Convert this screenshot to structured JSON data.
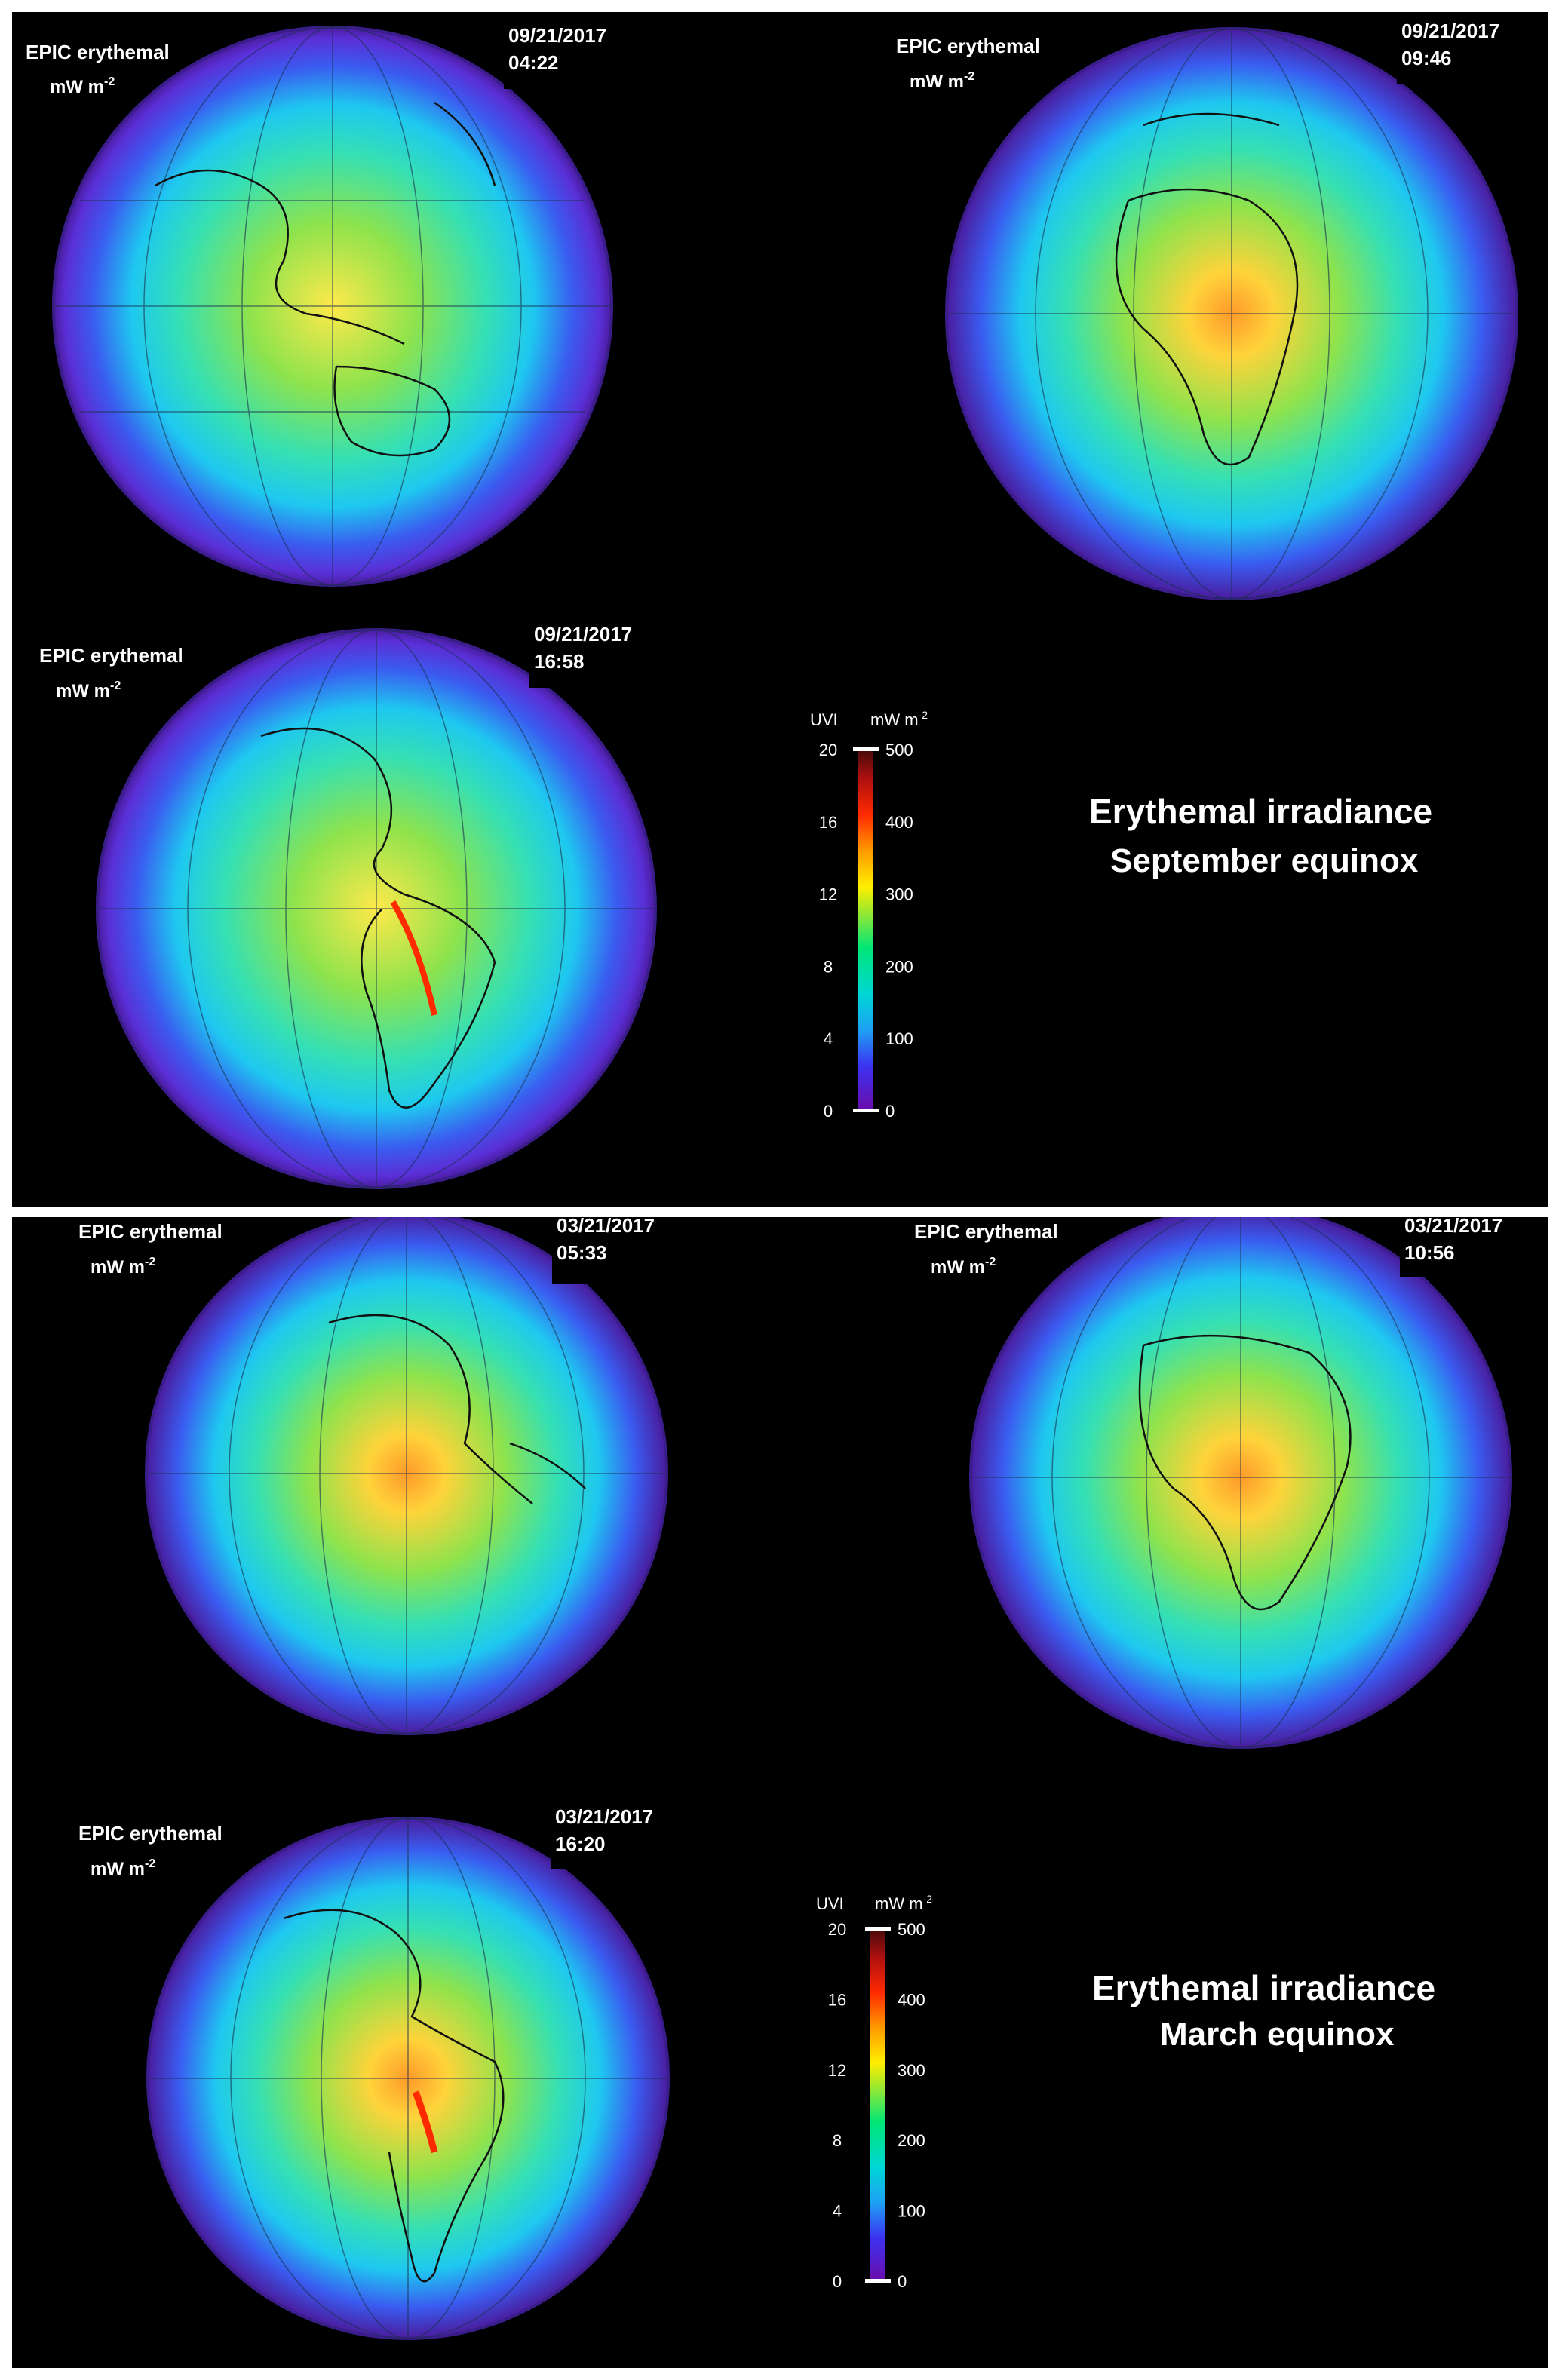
{
  "colors": {
    "background": "#000000",
    "separator": "#ffffff",
    "text": "#ffffff",
    "land_borders": "#000000",
    "colorscale": [
      "#6a0dad",
      "#3b32f0",
      "#00c8f0",
      "#00e676",
      "#ffee00",
      "#ff2a00",
      "#4a0a0a"
    ]
  },
  "septembet_placeholder_unused": null,
  "september": {
    "title_line1": "Erythemal irradiance",
    "title_line2": "September equinox",
    "maps": [
      {
        "product": "EPIC erythemal",
        "unit_base": "mW  m",
        "unit_exp": "-2",
        "date": "09/21/2017",
        "time": "04:22",
        "region": "asia-australia"
      },
      {
        "product": "EPIC erythemal",
        "unit_base": "mW  m",
        "unit_exp": "-2",
        "date": "09/21/2017",
        "time": "09:46",
        "region": "africa-europe"
      },
      {
        "product": "EPIC erythemal",
        "unit_base": "mW  m",
        "unit_exp": "-2",
        "date": "09/21/2017",
        "time": "16:58",
        "region": "americas"
      }
    ],
    "colorbar": {
      "uvi_label": "UVI",
      "mw_label_base": "mW  m",
      "mw_label_exp": "-2",
      "uvi_ticks": [
        "20",
        "16",
        "12",
        "8",
        "4",
        "0"
      ],
      "mw_ticks": [
        "500",
        "400",
        "300",
        "200",
        "100",
        "0"
      ]
    }
  },
  "march": {
    "title_line1": "Erythemal irradiance",
    "title_line2": "March equinox",
    "maps": [
      {
        "product": "EPIC erythemal",
        "unit_base": "mW  m",
        "unit_exp": "-2",
        "date": "03/21/2017",
        "time": "05:33",
        "region": "americas-pacific"
      },
      {
        "product": "EPIC erythemal",
        "unit_base": "mW  m",
        "unit_exp": "-2",
        "date": "03/21/2017",
        "time": "10:56",
        "region": "africa-europe"
      },
      {
        "product": "EPIC erythemal",
        "unit_base": "mW  m",
        "unit_exp": "-2",
        "date": "03/21/2017",
        "time": "16:20",
        "region": "americas"
      }
    ],
    "colorbar": {
      "uvi_label": "UVI",
      "mw_label_base": "mW  m",
      "mw_label_exp": "-2",
      "uvi_ticks": [
        "20",
        "16",
        "12",
        "8",
        "4",
        "0"
      ],
      "mw_ticks": [
        "500",
        "400",
        "300",
        "200",
        "100",
        "0"
      ]
    }
  }
}
